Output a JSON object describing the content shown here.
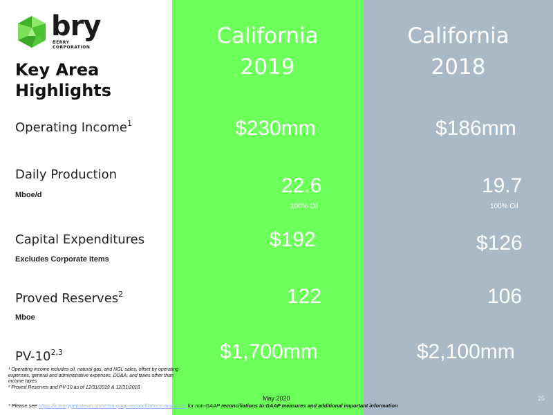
{
  "brand": {
    "name": "bry",
    "sub_line1": "BERRY",
    "sub_line2": "CORPORATION"
  },
  "title": {
    "line1": "Key Area",
    "line2": "Highlights"
  },
  "columns": [
    {
      "line1": "California",
      "line2": "2019"
    },
    {
      "line1": "California",
      "line2": "2018"
    }
  ],
  "rows": {
    "operating_income": {
      "label": "Operating Income",
      "sup": "1",
      "v2019": "$230mm",
      "v2018": "$186mm"
    },
    "daily_production": {
      "label": "Daily Production",
      "sub": "Mboe/d",
      "v2019": "22.6",
      "v2018": "19.7",
      "note2019": "100% Oil",
      "note2018": "100% Oil"
    },
    "capex": {
      "label": "Capital Expenditures",
      "sub": "Excludes Corporate Items",
      "v2019": "$192",
      "v2018": "$126"
    },
    "proved_reserves": {
      "label": "Proved Reserves",
      "sup": "2",
      "sub": "Mboe",
      "v2019": "122",
      "v2018": "106"
    },
    "pv10": {
      "label": "PV-10",
      "sup": "2,3",
      "v2019": "$1,700mm",
      "v2018": "$2,100mm"
    }
  },
  "footnotes": [
    "¹ Operating income includes oil, natural gas, and NGL sales, offset by operating expenses, general and administrative expenses, DD&A, and taxes other than income taxes",
    "² Proved Reserves and PV-10 as of 12/31/2019 & 12/31/2018"
  ],
  "footer": {
    "date": "May 2020",
    "page": "25",
    "note_prefix": "³ Please see ",
    "note_link": "https://ir.berrypetroleum.com/non-gaap-reconciliations-and-other",
    "note_mid": " for non-GAAP ",
    "note_bold": "reconciliations to GAAP measures and additional important information"
  },
  "colors": {
    "col2019": "#6dff5a",
    "col2018": "#a9b9c7",
    "logo_green": "#5fd13a"
  }
}
